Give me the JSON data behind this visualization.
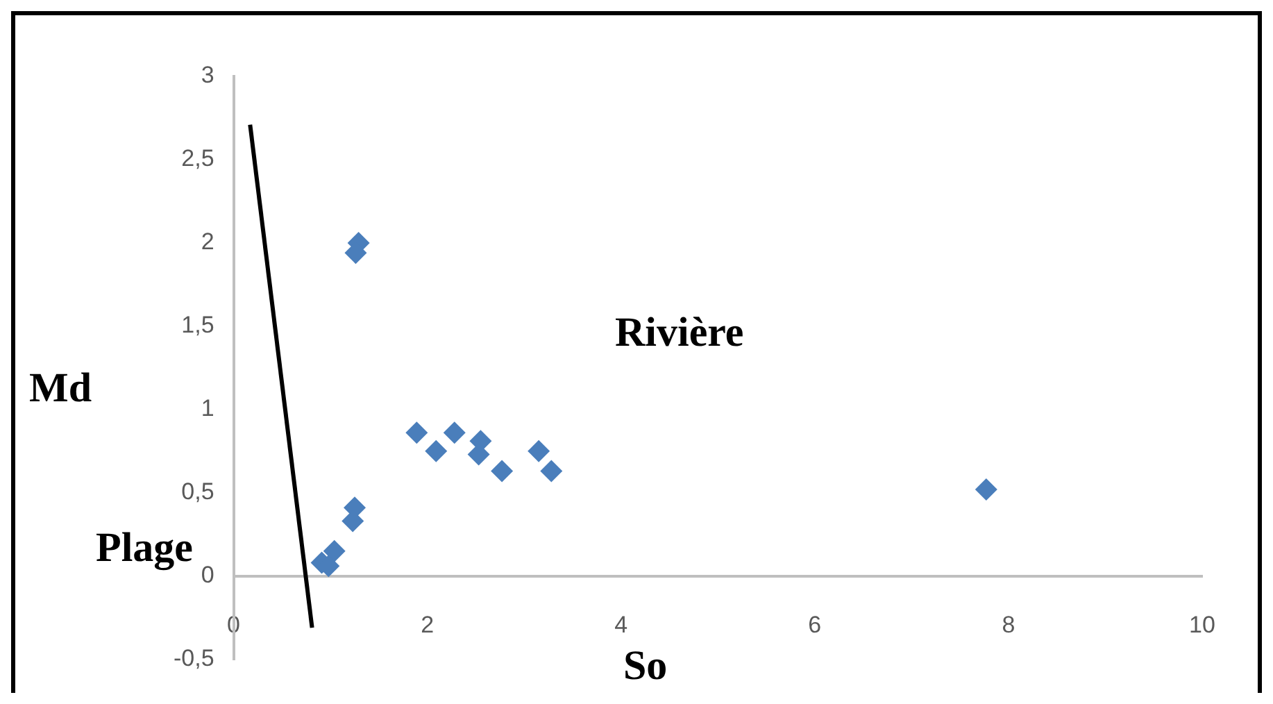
{
  "chart_data": {
    "type": "scatter",
    "xlabel": "So",
    "ylabel": "Md",
    "annotations": [
      "Rivière",
      "Plage"
    ],
    "xlim": [
      0,
      10
    ],
    "xticks": [
      0,
      2,
      4,
      6,
      8,
      10
    ],
    "ylim": [
      -0.5,
      3
    ],
    "yticks": [
      {
        "value": -0.5,
        "label": "-0,5"
      },
      0,
      {
        "value": 0.5,
        "label": "0,5"
      },
      1,
      {
        "value": 1.5,
        "label": "1,5"
      },
      2,
      {
        "value": 2.5,
        "label": "2,5"
      },
      3
    ],
    "grid": false,
    "legend": false,
    "series": [
      {
        "color": "#4a7ebb",
        "marker": "diamond",
        "x": [
          1.29,
          1.26,
          1.25,
          1.23,
          1.04,
          0.91,
          0.98,
          1.89,
          2.09,
          2.28,
          2.55,
          2.53,
          2.77,
          3.15,
          3.28,
          7.77
        ],
        "values": [
          2.0,
          1.94,
          0.41,
          0.33,
          0.15,
          0.08,
          0.06,
          0.86,
          0.75,
          0.86,
          0.81,
          0.73,
          0.63,
          0.75,
          0.63,
          0.52
        ]
      },
      {
        "type": "line",
        "color": "#000000",
        "marker": "none",
        "line_style": "solid",
        "x": [
          0.17,
          0.81
        ],
        "values": [
          2.71,
          -0.31
        ]
      }
    ]
  }
}
